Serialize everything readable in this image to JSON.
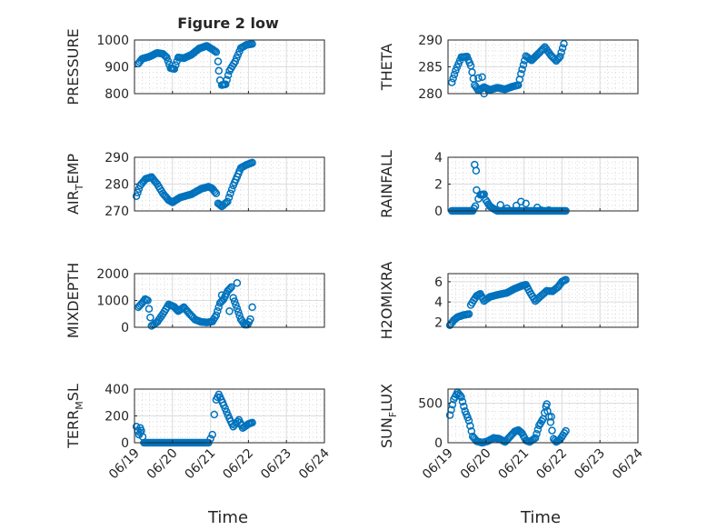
{
  "figure": {
    "title": "Figure 2 low",
    "xlabel": "Time"
  },
  "colors": {
    "marker": "#0072bd",
    "axes": "#262626",
    "grid": "#dcdcdc"
  },
  "x_ticks": [
    "06/19",
    "06/20",
    "06/21",
    "06/22",
    "06/23",
    "06/24"
  ],
  "chart_data": [
    {
      "type": "scatter",
      "id": "pressure",
      "ylabel": "PRESSURE",
      "xlim": [
        0,
        5
      ],
      "ylim": [
        800,
        1000
      ],
      "yticks": [
        800,
        900,
        1000
      ],
      "grid": true,
      "knots": [
        [
          0.1,
          912
        ],
        [
          0.2,
          930
        ],
        [
          0.4,
          938
        ],
        [
          0.6,
          952
        ],
        [
          0.75,
          948
        ],
        [
          0.85,
          935
        ],
        [
          0.95,
          895
        ],
        [
          1.05,
          892
        ],
        [
          1.15,
          935
        ],
        [
          1.3,
          932
        ],
        [
          1.5,
          945
        ],
        [
          1.7,
          968
        ],
        [
          1.9,
          978
        ],
        [
          2.05,
          965
        ],
        [
          2.15,
          955
        ],
        [
          2.2,
          920
        ],
        [
          2.25,
          850
        ],
        [
          2.3,
          832
        ],
        [
          2.4,
          835
        ],
        [
          2.5,
          885
        ],
        [
          2.65,
          920
        ],
        [
          2.8,
          970
        ],
        [
          2.95,
          982
        ],
        [
          3.1,
          985
        ]
      ],
      "outliers": [
        [
          2.22,
          885
        ]
      ]
    },
    {
      "type": "scatter",
      "id": "theta",
      "ylabel": "THETA",
      "xlim": [
        0,
        5
      ],
      "ylim": [
        280,
        290
      ],
      "yticks": [
        280,
        285,
        290
      ],
      "grid": true,
      "knots": [
        [
          0.1,
          282.1
        ],
        [
          0.2,
          284.3
        ],
        [
          0.35,
          286.8
        ],
        [
          0.5,
          286.9
        ],
        [
          0.6,
          285.2
        ],
        [
          0.7,
          281.6
        ],
        [
          0.8,
          280.6
        ],
        [
          0.95,
          281.2
        ],
        [
          1.1,
          280.7
        ],
        [
          1.3,
          281.1
        ],
        [
          1.5,
          280.8
        ],
        [
          1.7,
          281.3
        ],
        [
          1.85,
          281.6
        ],
        [
          1.92,
          283.7
        ],
        [
          2.05,
          287.0
        ],
        [
          2.2,
          286.2
        ],
        [
          2.4,
          287.6
        ],
        [
          2.55,
          288.7
        ],
        [
          2.7,
          287.2
        ],
        [
          2.85,
          286.1
        ],
        [
          2.95,
          286.9
        ],
        [
          3.05,
          289.3
        ]
      ],
      "outliers": [
        [
          0.8,
          282.9
        ],
        [
          0.9,
          283.1
        ],
        [
          0.95,
          279.6
        ]
      ]
    },
    {
      "type": "scatter",
      "id": "air_temp",
      "ylabel": "AIR",
      "ylabel_sub": "T",
      "ylabel_rest": "EMP",
      "xlim": [
        0,
        5
      ],
      "ylim": [
        270,
        290
      ],
      "yticks": [
        270,
        280,
        290
      ],
      "grid": true,
      "knots": [
        [
          0.05,
          275.5
        ],
        [
          0.15,
          279.5
        ],
        [
          0.3,
          282.0
        ],
        [
          0.45,
          282.6
        ],
        [
          0.6,
          280.0
        ],
        [
          0.75,
          276.5
        ],
        [
          0.9,
          274.0
        ],
        [
          1.0,
          273.2
        ],
        [
          1.2,
          275.0
        ],
        [
          1.5,
          276.2
        ],
        [
          1.75,
          278.2
        ],
        [
          1.95,
          279.0
        ],
        [
          2.05,
          278.3
        ],
        [
          2.15,
          276.5
        ],
        [
          2.2,
          272.8
        ],
        [
          2.3,
          271.7
        ],
        [
          2.45,
          273.5
        ],
        [
          2.6,
          279.5
        ],
        [
          2.8,
          286.0
        ],
        [
          2.95,
          287.2
        ],
        [
          3.1,
          288.0
        ]
      ],
      "outliers": []
    },
    {
      "type": "scatter",
      "id": "rainfall",
      "ylabel": "RAINFALL",
      "xlim": [
        0,
        5
      ],
      "ylim": [
        0,
        4
      ],
      "yticks": [
        0,
        2,
        4
      ],
      "grid": true,
      "knots": [
        [
          0.1,
          0
        ],
        [
          0.65,
          0
        ],
        [
          0.72,
          0.35
        ],
        [
          0.75,
          1.55
        ],
        [
          0.8,
          0.9
        ],
        [
          0.85,
          1.2
        ],
        [
          0.95,
          1.25
        ],
        [
          1.0,
          0.8
        ],
        [
          1.1,
          0.35
        ],
        [
          1.2,
          0.15
        ],
        [
          1.3,
          0
        ],
        [
          3.1,
          0
        ]
      ],
      "outliers": [
        [
          0.7,
          3.45
        ],
        [
          0.74,
          3.0
        ],
        [
          1.38,
          0.45
        ],
        [
          1.55,
          0.2
        ],
        [
          1.8,
          0.4
        ],
        [
          1.92,
          0.7
        ],
        [
          2.05,
          0.55
        ],
        [
          2.35,
          0.25
        ],
        [
          2.45,
          0.05
        ],
        [
          2.65,
          0.05
        ]
      ]
    },
    {
      "type": "scatter",
      "id": "mixdepth",
      "ylabel": "MIXDEPTH",
      "xlim": [
        0,
        5
      ],
      "ylim": [
        0,
        2000
      ],
      "yticks": [
        0,
        1000,
        2000
      ],
      "grid": true,
      "knots": [
        [
          0.1,
          750
        ],
        [
          0.2,
          900
        ],
        [
          0.28,
          1050
        ],
        [
          0.35,
          1000
        ],
        [
          0.45,
          50
        ],
        [
          0.6,
          200
        ],
        [
          0.75,
          500
        ],
        [
          0.9,
          850
        ],
        [
          1.05,
          760
        ],
        [
          1.15,
          600
        ],
        [
          1.3,
          750
        ],
        [
          1.45,
          500
        ],
        [
          1.6,
          280
        ],
        [
          1.75,
          200
        ],
        [
          1.9,
          180
        ],
        [
          2.05,
          210
        ],
        [
          2.15,
          450
        ],
        [
          2.25,
          900
        ],
        [
          2.35,
          1050
        ],
        [
          2.45,
          1350
        ],
        [
          2.55,
          1500
        ],
        [
          2.6,
          1100
        ],
        [
          2.7,
          700
        ],
        [
          2.8,
          300
        ],
        [
          2.9,
          100
        ],
        [
          2.98,
          100
        ],
        [
          3.05,
          300
        ],
        [
          3.1,
          750
        ]
      ],
      "outliers": [
        [
          2.3,
          1200
        ],
        [
          2.7,
          1650
        ],
        [
          2.5,
          600
        ]
      ]
    },
    {
      "type": "scatter",
      "id": "h2omixra",
      "ylabel": "H2OMIXRA",
      "xlim": [
        0,
        5
      ],
      "ylim": [
        1.5,
        6.8
      ],
      "yticks": [
        2,
        4,
        6
      ],
      "grid": true,
      "knots": [
        [
          0.05,
          1.7
        ],
        [
          0.15,
          2.2
        ],
        [
          0.25,
          2.5
        ],
        [
          0.4,
          2.7
        ],
        [
          0.55,
          2.8
        ],
        [
          0.6,
          3.7
        ],
        [
          0.75,
          4.6
        ],
        [
          0.85,
          4.8
        ],
        [
          0.95,
          4.1
        ],
        [
          1.1,
          4.5
        ],
        [
          1.3,
          4.7
        ],
        [
          1.55,
          4.9
        ],
        [
          1.75,
          5.3
        ],
        [
          1.95,
          5.6
        ],
        [
          2.05,
          5.7
        ],
        [
          2.15,
          5.0
        ],
        [
          2.3,
          4.1
        ],
        [
          2.45,
          4.6
        ],
        [
          2.6,
          5.1
        ],
        [
          2.75,
          5.05
        ],
        [
          2.9,
          5.5
        ],
        [
          3.0,
          6.0
        ],
        [
          3.1,
          6.2
        ]
      ],
      "outliers": []
    },
    {
      "type": "scatter",
      "id": "terr_msl",
      "ylabel": "TERR",
      "ylabel_sub": "M",
      "ylabel_rest": "SL",
      "xlim": [
        0,
        5
      ],
      "ylim": [
        0,
        400
      ],
      "yticks": [
        0,
        200,
        400
      ],
      "grid": true,
      "knots": [
        [
          0.05,
          120
        ],
        [
          0.12,
          60
        ],
        [
          0.18,
          90
        ],
        [
          0.25,
          0
        ],
        [
          1.95,
          0
        ],
        [
          2.0,
          30
        ],
        [
          2.05,
          60
        ],
        [
          2.1,
          210
        ],
        [
          2.15,
          320
        ],
        [
          2.22,
          360
        ],
        [
          2.35,
          280
        ],
        [
          2.5,
          180
        ],
        [
          2.6,
          120
        ],
        [
          2.75,
          170
        ],
        [
          2.85,
          110
        ],
        [
          3.0,
          140
        ],
        [
          3.1,
          150
        ]
      ],
      "outliers": [
        [
          0.15,
          110
        ]
      ]
    },
    {
      "type": "scatter",
      "id": "sun_flux",
      "ylabel": "SUN",
      "ylabel_sub": "F",
      "ylabel_rest": "LUX",
      "xlim": [
        0,
        5
      ],
      "ylim": [
        0,
        680
      ],
      "yticks": [
        0,
        500
      ],
      "grid": true,
      "knots": [
        [
          0.05,
          350
        ],
        [
          0.15,
          550
        ],
        [
          0.25,
          640
        ],
        [
          0.35,
          580
        ],
        [
          0.45,
          400
        ],
        [
          0.55,
          280
        ],
        [
          0.65,
          80
        ],
        [
          0.75,
          20
        ],
        [
          0.9,
          0
        ],
        [
          1.05,
          20
        ],
        [
          1.2,
          60
        ],
        [
          1.35,
          50
        ],
        [
          1.5,
          10
        ],
        [
          1.6,
          60
        ],
        [
          1.75,
          140
        ],
        [
          1.85,
          160
        ],
        [
          1.95,
          120
        ],
        [
          2.05,
          30
        ],
        [
          2.15,
          10
        ],
        [
          2.3,
          60
        ],
        [
          2.4,
          220
        ],
        [
          2.5,
          300
        ],
        [
          2.58,
          460
        ],
        [
          2.62,
          400
        ],
        [
          2.7,
          260
        ],
        [
          2.78,
          50
        ],
        [
          2.85,
          10
        ],
        [
          2.95,
          40
        ],
        [
          3.1,
          150
        ]
      ],
      "outliers": [
        [
          2.6,
          490
        ],
        [
          2.72,
          330
        ]
      ]
    }
  ]
}
